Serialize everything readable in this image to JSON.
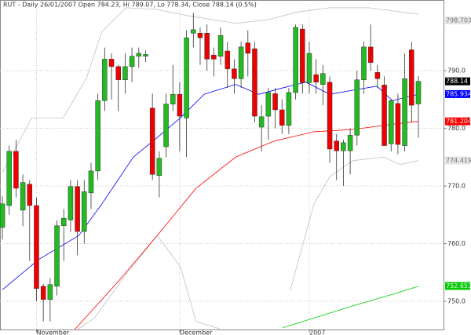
{
  "chart_data": {
    "type": "candlestick",
    "title": "RUT - Daily 26/01/2007 Open 784.23, Hi 789.07, Lo 778.34, Close 788.14 (0.5%)",
    "xlim": [
      -0.35,
      64.8
    ],
    "xticks": [
      {
        "value": 5,
        "label": "November"
      },
      {
        "value": 26,
        "label": "December"
      },
      {
        "value": 45,
        "label": "2007"
      }
    ],
    "ylim": [
      745.1,
      801.16
    ],
    "yticks": [
      {
        "value": 750,
        "label": "750.0"
      },
      {
        "value": 760,
        "label": "760.0"
      },
      {
        "value": 770,
        "label": "770.0"
      },
      {
        "value": 780,
        "label": "780.0"
      },
      {
        "value": 790,
        "label": "790.0"
      }
    ],
    "grid": true,
    "up_color": "#22bb22",
    "down_color": "#ee0000",
    "open": [
      762.8,
      766.6,
      776.0,
      765.8,
      770.3,
      766.6,
      752.6,
      750.3,
      752.6,
      763.1,
      764.1,
      769.9,
      762.1,
      768.8,
      772.6,
      784.8,
      792.0,
      790.7,
      788.4,
      790.7,
      792.5,
      792.5,
      783.5,
      771.8,
      776.8,
      784.2,
      785.9,
      781.8,
      796.5,
      796.5,
      796.5,
      792.7,
      792.5,
      793.4,
      790.3,
      788.6,
      794.8,
      793.8,
      780.2,
      782.1,
      786.0,
      783.2,
      780.5,
      786.2,
      797.2,
      787.9,
      789.3,
      787.6,
      788.0,
      777.8,
      776.1,
      776.1,
      778.8,
      788.4,
      794.1,
      789.7,
      787.5,
      777.3,
      784.3,
      777.0,
      793.6,
      784.23
    ],
    "high": [
      768.2,
      777.0,
      778.0,
      772.0,
      771.0,
      768.0,
      753.0,
      754.0,
      764.0,
      766.0,
      771.0,
      771.0,
      771.0,
      774.0,
      786.0,
      794.0,
      793.0,
      791.0,
      793.0,
      794.0,
      794.0,
      793.5,
      786.0,
      776.0,
      786.0,
      791.0,
      788.0,
      797.0,
      800.0,
      797.5,
      798.0,
      794.0,
      797.5,
      795.0,
      792.0,
      795.0,
      797.0,
      795.0,
      784.0,
      787.0,
      787.0,
      785.0,
      787.0,
      798.0,
      798.0,
      795.0,
      792.0,
      791.0,
      789.0,
      779.0,
      778.0,
      780.0,
      790.0,
      795.0,
      798.0,
      791.0,
      789.0,
      785.0,
      786.0,
      793.0,
      795.0,
      789.07
    ],
    "low": [
      760.7,
      765.0,
      768.0,
      763.0,
      757.0,
      750.0,
      746.5,
      746.5,
      751.0,
      757.0,
      762.0,
      758.0,
      760.0,
      766.0,
      771.0,
      783.0,
      785.0,
      783.0,
      786.0,
      788.0,
      790.5,
      791.5,
      771.0,
      768.0,
      775.0,
      783.0,
      776.0,
      775.0,
      794.0,
      791.0,
      790.0,
      789.0,
      791.0,
      787.0,
      786.0,
      787.0,
      789.0,
      781.0,
      776.0,
      778.0,
      780.0,
      779.0,
      779.0,
      785.0,
      786.0,
      786.0,
      786.0,
      784.0,
      774.0,
      771.0,
      770.0,
      772.0,
      777.0,
      786.0,
      790.0,
      787.0,
      777.0,
      776.0,
      775.5,
      776.0,
      781.0,
      778.34
    ],
    "close": [
      766.9,
      776.0,
      769.6,
      770.6,
      766.6,
      752.2,
      750.3,
      752.9,
      763.1,
      764.4,
      769.9,
      762.1,
      769.0,
      772.6,
      784.8,
      792.0,
      790.7,
      788.4,
      790.7,
      792.5,
      793.0,
      792.8,
      772.0,
      774.8,
      784.2,
      785.9,
      782.1,
      795.7,
      797.1,
      795.7,
      792.0,
      792.0,
      796.1,
      790.3,
      788.6,
      794.1,
      793.0,
      782.1,
      782.0,
      786.2,
      783.2,
      780.5,
      786.2,
      797.5,
      787.9,
      793.0,
      788.0,
      789.5,
      776.4,
      776.1,
      777.5,
      778.8,
      788.4,
      794.1,
      791.4,
      788.6,
      777.0,
      784.8,
      777.2,
      788.6,
      784.0,
      788.14
    ],
    "close_tag": 788.14,
    "lines": [
      {
        "color": "#c0c0c0",
        "tag": 798.703,
        "x": [
          0,
          4.3,
          8.9,
          12.3,
          14.6,
          18.1,
          22.7,
          27.3,
          34.2,
          38.8,
          43.4,
          48,
          53.7,
          58.3,
          61
        ],
        "values": [
          772.3,
          781.8,
          781.8,
          788.6,
          796.8,
          800.9,
          800.6,
          799.5,
          798.2,
          798.8,
          800.2,
          800.9,
          800.9,
          800.2,
          799.8
        ]
      },
      {
        "color": "#c0c0c0",
        "tag": 774.419,
        "x": [
          11,
          13.5,
          18.1,
          22.7,
          26.1,
          28.4,
          31.9,
          37,
          42.2,
          45.7,
          48,
          51.4,
          56,
          58.3,
          61
        ],
        "values": [
          745.1,
          747.1,
          754.6,
          761.4,
          756,
          746.5,
          745.2,
          null,
          751.9,
          766.9,
          771.6,
          774.4,
          775,
          773.7,
          774.4
        ]
      },
      {
        "color": "#0000ff",
        "tag": 785.934,
        "x": [
          0,
          5.4,
          11.2,
          14.6,
          19.2,
          22.7,
          26.1,
          29.6,
          34.2,
          37.6,
          41.1,
          44.5,
          48,
          51.4,
          54.9,
          57.2,
          61
        ],
        "values": [
          752,
          757.3,
          761.4,
          766.9,
          775,
          778.4,
          781.8,
          785.9,
          787.6,
          785.9,
          787,
          788,
          785.9,
          786.6,
          787.3,
          784.8,
          785.9
        ]
      },
      {
        "color": "#ff0000",
        "tag": 781.204,
        "x": [
          10.6,
          16.9,
          22.7,
          28.4,
          34.2,
          39.9,
          45.7,
          51.4,
          57.2,
          61
        ],
        "values": [
          745.1,
          753.3,
          761.4,
          769.6,
          775,
          777.8,
          779.4,
          779.8,
          780.7,
          781.2
        ]
      },
      {
        "color": "#00cc00",
        "tag": 752.653,
        "x": [
          41.1,
          45.7,
          51.4,
          57.2,
          61
        ],
        "values": [
          745.4,
          747.1,
          749.2,
          751.2,
          752.6
        ]
      }
    ]
  }
}
